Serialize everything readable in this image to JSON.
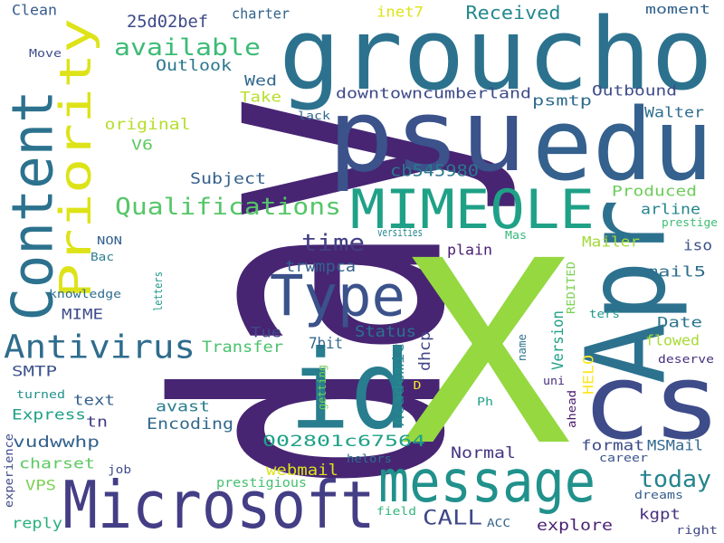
{
  "title": "Word cloud",
  "words": [
    {
      "text": "day",
      "color": "#472573"
    },
    {
      "text": "X",
      "color": "#95d840"
    },
    {
      "text": "groucho",
      "color": "#2c728e"
    },
    {
      "text": "psu",
      "color": "#3b528b"
    },
    {
      "text": "edu",
      "color": "#34618d"
    },
    {
      "text": "cs",
      "color": "#3e4c8a"
    },
    {
      "text": "Apr",
      "color": "#2c728e"
    },
    {
      "text": "id",
      "color": "#287d8e"
    },
    {
      "text": "Microsoft",
      "color": "#433e85"
    },
    {
      "text": "message",
      "color": "#21918c"
    },
    {
      "text": "Content",
      "color": "#2c728e"
    },
    {
      "text": "MIMEOLE",
      "color": "#1fa187"
    },
    {
      "text": "Type",
      "color": "#3b528b"
    },
    {
      "text": "Priority",
      "color": "#dde318"
    },
    {
      "text": "Antivirus",
      "color": "#2f6c8e"
    },
    {
      "text": "Qualifications",
      "color": "#56c667"
    },
    {
      "text": "available",
      "color": "#3cbb75"
    },
    {
      "text": "today",
      "color": "#25838e"
    },
    {
      "text": "time",
      "color": "#433e85"
    },
    {
      "text": "Received",
      "color": "#23898e"
    },
    {
      "text": "CALL",
      "color": "#3f4788"
    },
    {
      "text": "Outlook",
      "color": "#2a768e"
    },
    {
      "text": "Clean",
      "color": "#365c8d"
    },
    {
      "text": "charter",
      "color": "#33638d"
    },
    {
      "text": "25d02bef",
      "color": "#3e4a89"
    },
    {
      "text": "inet7",
      "color": "#dde318"
    },
    {
      "text": "moment",
      "color": "#33638d"
    },
    {
      "text": "Move",
      "color": "#3e4c8a"
    },
    {
      "text": "Wed",
      "color": "#31688e"
    },
    {
      "text": "Take",
      "color": "#b8de29"
    },
    {
      "text": "downtowncumberland",
      "color": "#3e4a89"
    },
    {
      "text": "psmtp",
      "color": "#2f6c8e"
    },
    {
      "text": "Outbound",
      "color": "#3e4c8a"
    },
    {
      "text": "Walter",
      "color": "#2e6e8e"
    },
    {
      "text": "lack",
      "color": "#31688e"
    },
    {
      "text": "original",
      "color": "#b5de2b"
    },
    {
      "text": "V6",
      "color": "#5ec962"
    },
    {
      "text": "Subject",
      "color": "#34618d"
    },
    {
      "text": "cb545980",
      "color": "#2a788e"
    },
    {
      "text": "Produced",
      "color": "#6ccd5a"
    },
    {
      "text": "kgpt",
      "color": "#46327e"
    },
    {
      "text": "arline",
      "color": "#25858e"
    },
    {
      "text": "prestige",
      "color": "#3dbc74"
    },
    {
      "text": "trwmpca",
      "color": "#34618d"
    },
    {
      "text": "plain",
      "color": "#481d6f"
    },
    {
      "text": "versities",
      "color": "#25848e"
    },
    {
      "text": "Mas",
      "color": "#35b779"
    },
    {
      "text": "Mailer",
      "color": "#a2da37"
    },
    {
      "text": "iso",
      "color": "#3b528b"
    },
    {
      "text": "mail5",
      "color": "#2e6d8e"
    },
    {
      "text": "NON",
      "color": "#34618d"
    },
    {
      "text": "Bac",
      "color": "#287d8e"
    },
    {
      "text": "knowledge",
      "color": "#2e6e8e"
    },
    {
      "text": "letters",
      "color": "#1f978b"
    },
    {
      "text": "REDITED",
      "color": "#7ad151"
    },
    {
      "text": "MIME",
      "color": "#3e4c8a"
    },
    {
      "text": "Tue",
      "color": "#3f4788"
    },
    {
      "text": "Transfer",
      "color": "#4ac16d"
    },
    {
      "text": "7bit",
      "color": "#31688e"
    },
    {
      "text": "Status",
      "color": "#2c728e"
    },
    {
      "text": "Academic",
      "color": "#23898e"
    },
    {
      "text": "dhcp",
      "color": "#414487"
    },
    {
      "text": "Version",
      "color": "#1fa187"
    },
    {
      "text": "Date",
      "color": "#2b758e"
    },
    {
      "text": "flowed",
      "color": "#a8db34"
    },
    {
      "text": "ters",
      "color": "#1f988b"
    },
    {
      "text": "SMTP",
      "color": "#3b528b"
    },
    {
      "text": "getting",
      "color": "#74d055"
    },
    {
      "text": "name",
      "color": "#2c728e"
    },
    {
      "text": "deserve",
      "color": "#46307e"
    },
    {
      "text": "HELO",
      "color": "#fde725"
    },
    {
      "text": "uni",
      "color": "#472f7d"
    },
    {
      "text": "turned",
      "color": "#21918c"
    },
    {
      "text": "D",
      "color": "#fde725"
    },
    {
      "text": "text",
      "color": "#34618d"
    },
    {
      "text": "avast",
      "color": "#287d8e"
    },
    {
      "text": "Ph",
      "color": "#1fa187"
    },
    {
      "text": "ahead",
      "color": "#481769"
    },
    {
      "text": "Express",
      "color": "#1fa187"
    },
    {
      "text": "Encoding",
      "color": "#31688e"
    },
    {
      "text": "tn",
      "color": "#433e85"
    },
    {
      "text": "experience",
      "color": "#3e4989"
    },
    {
      "text": "vudwwhp",
      "color": "#34618d"
    },
    {
      "text": "002801c67564",
      "color": "#1fa187"
    },
    {
      "text": "format",
      "color": "#3e4c8a"
    },
    {
      "text": "MSMail",
      "color": "#31688e"
    },
    {
      "text": "charset",
      "color": "#5ec962"
    },
    {
      "text": "Normal",
      "color": "#453581"
    },
    {
      "text": "career",
      "color": "#3b528b"
    },
    {
      "text": "job",
      "color": "#3e4989"
    },
    {
      "text": "webmail",
      "color": "#dde318"
    },
    {
      "text": "helors",
      "color": "#2e6d8e"
    },
    {
      "text": "VPS",
      "color": "#7ad151"
    },
    {
      "text": "prestigious",
      "color": "#46c06f"
    },
    {
      "text": "dreams",
      "color": "#365d8d"
    },
    {
      "text": "reply",
      "color": "#29af7f"
    },
    {
      "text": "field",
      "color": "#35b779"
    },
    {
      "text": "ACC",
      "color": "#34618d"
    },
    {
      "text": "explore",
      "color": "#481f70"
    },
    {
      "text": "right",
      "color": "#404688"
    }
  ]
}
